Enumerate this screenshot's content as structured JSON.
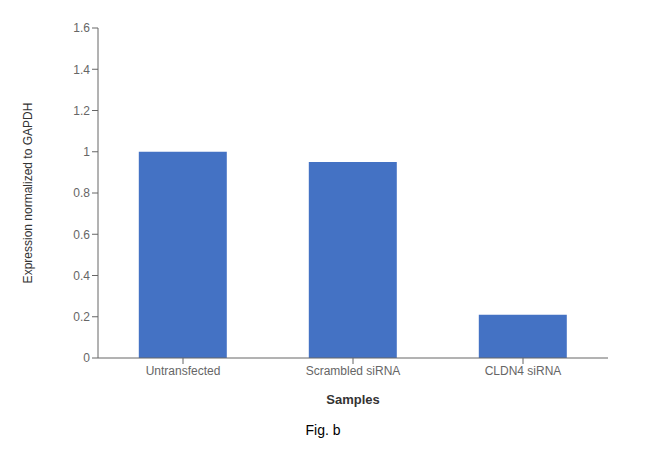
{
  "chart_data": {
    "type": "bar",
    "categories": [
      "Untransfected",
      "Scrambled siRNA",
      "CLDN4 siRNA"
    ],
    "values": [
      1.0,
      0.95,
      0.21
    ],
    "color": "#4472C4",
    "xlabel": "Samples",
    "ylabel": "Expression normalized to GAPDH",
    "ylim": [
      0,
      1.6
    ],
    "yticks": [
      0,
      0.2,
      0.4,
      0.6,
      0.8,
      1.0,
      1.2,
      1.4,
      1.6
    ],
    "grid": false,
    "annotations": [
      "Fig. b"
    ]
  }
}
